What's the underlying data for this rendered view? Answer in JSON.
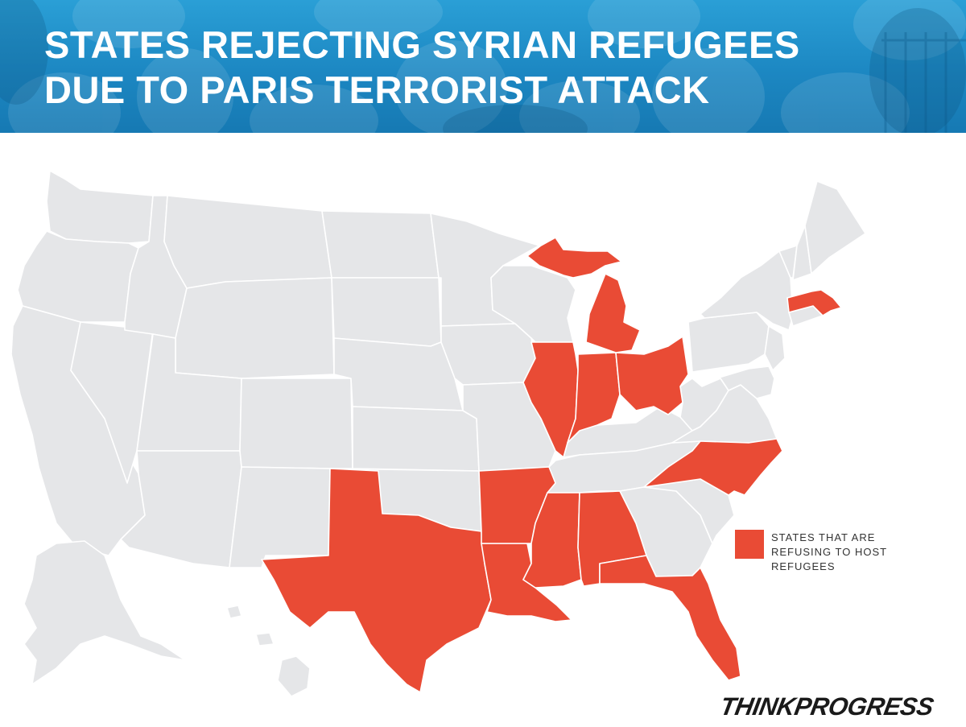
{
  "header": {
    "title_line1": "STATES REJECTING SYRIAN REFUGEES",
    "title_line2": "DUE TO PARIS TERRORIST ATTACK",
    "background_color": "#1c87c2"
  },
  "map": {
    "region": "United States",
    "default_fill": "#e5e6e8",
    "highlight_fill": "#e94b35",
    "border_color": "#ffffff",
    "highlighted_states": [
      "Texas",
      "Louisiana",
      "Arkansas",
      "Mississippi",
      "Alabama",
      "Florida",
      "Illinois",
      "Indiana",
      "Michigan",
      "Ohio",
      "North Carolina",
      "Massachusetts"
    ]
  },
  "legend": {
    "label": "STATES THAT ARE REFUSING TO HOST REFUGEES",
    "color": "#e94b35"
  },
  "brand": {
    "logo_text": "THINKPROGRESS"
  }
}
